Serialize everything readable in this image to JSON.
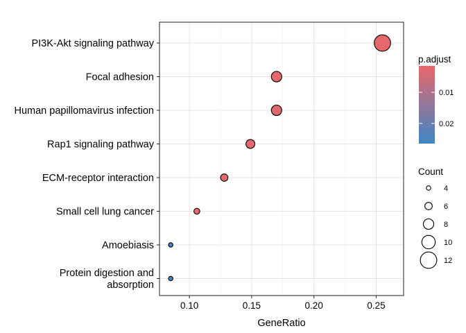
{
  "chart_data": {
    "type": "scatter",
    "subtype": "dotplot",
    "xlabel": "GeneRatio",
    "xlim": [
      0.076,
      0.272
    ],
    "x_ticks": [
      0.1,
      0.15,
      0.2,
      0.25
    ],
    "x_tick_labels": [
      "0.10",
      "0.15",
      "0.20",
      "0.25"
    ],
    "grid": true,
    "categories": [
      "PI3K-Akt signaling pathway",
      "Focal adhesion",
      "Human papillomavirus infection",
      "Rap1 signaling pathway",
      "ECM-receptor interaction",
      "Small cell lung cancer",
      "Amoebiasis",
      "Protein digestion and\nabsorption"
    ],
    "points": [
      {
        "term": "PI3K-Akt signaling pathway",
        "gene_ratio": 0.255,
        "count": 12,
        "p_adjust": 0.002
      },
      {
        "term": "Focal adhesion",
        "gene_ratio": 0.17,
        "count": 8,
        "p_adjust": 0.002
      },
      {
        "term": "Human papillomavirus infection",
        "gene_ratio": 0.17,
        "count": 8,
        "p_adjust": 0.003
      },
      {
        "term": "Rap1 signaling pathway",
        "gene_ratio": 0.149,
        "count": 7,
        "p_adjust": 0.002
      },
      {
        "term": "ECM-receptor interaction",
        "gene_ratio": 0.128,
        "count": 6,
        "p_adjust": 0.002
      },
      {
        "term": "Small cell lung cancer",
        "gene_ratio": 0.106,
        "count": 5,
        "p_adjust": 0.002
      },
      {
        "term": "Amoebiasis",
        "gene_ratio": 0.085,
        "count": 4,
        "p_adjust": 0.025
      },
      {
        "term": "Protein digestion and absorption",
        "gene_ratio": 0.085,
        "count": 4,
        "p_adjust": 0.025
      }
    ],
    "color_legend": {
      "title": "p.adjust",
      "min": 0.0015,
      "max": 0.0265,
      "ticks": [
        0.01,
        0.02
      ],
      "tick_labels": [
        "0.01",
        "0.02"
      ],
      "low_color": "#e8676b",
      "high_color": "#3f86c5",
      "position": "right"
    },
    "size_legend": {
      "title": "Count",
      "values": [
        4,
        6,
        8,
        10,
        12
      ],
      "labels": [
        "4",
        "6",
        "8",
        "10",
        "12"
      ],
      "position": "right"
    }
  }
}
